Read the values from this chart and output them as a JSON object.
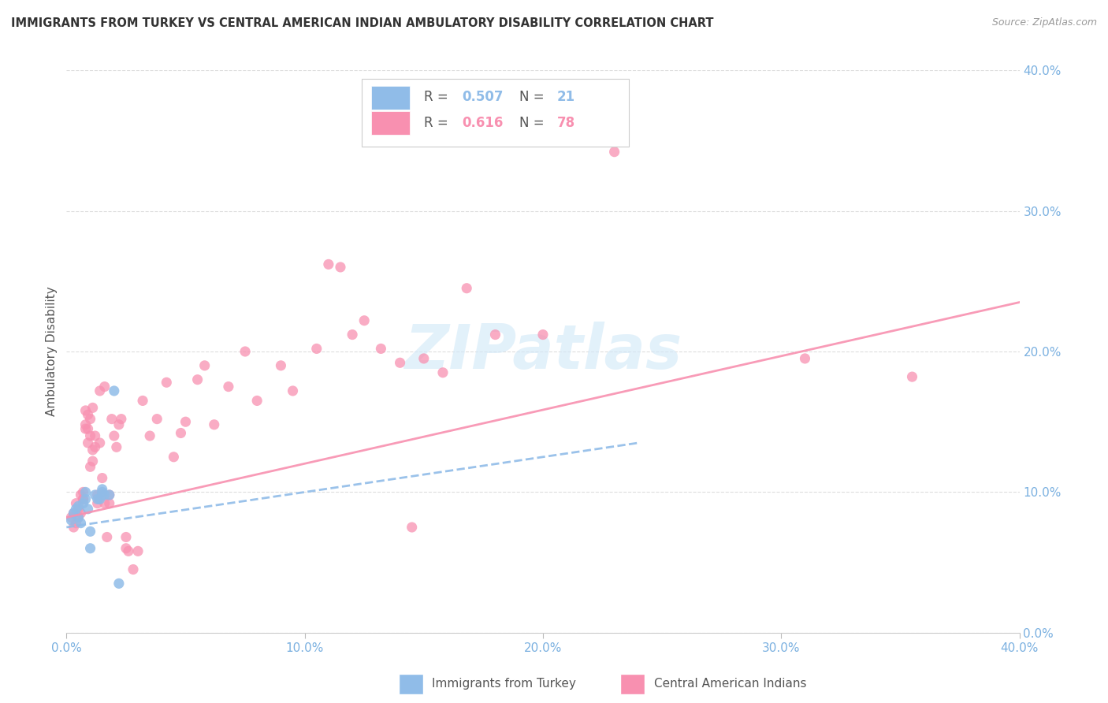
{
  "title": "IMMIGRANTS FROM TURKEY VS CENTRAL AMERICAN INDIAN AMBULATORY DISABILITY CORRELATION CHART",
  "source": "Source: ZipAtlas.com",
  "ylabel": "Ambulatory Disability",
  "xlim": [
    0.0,
    0.4
  ],
  "ylim": [
    0.0,
    0.4
  ],
  "xtick_vals": [
    0.0,
    0.1,
    0.2,
    0.3,
    0.4
  ],
  "xtick_labels": [
    "0.0%",
    "10.0%",
    "20.0%",
    "30.0%",
    "40.0%"
  ],
  "ytick_vals": [
    0.0,
    0.1,
    0.2,
    0.3,
    0.4
  ],
  "ytick_labels": [
    "0.0%",
    "10.0%",
    "20.0%",
    "30.0%",
    "40.0%"
  ],
  "legend_items": [
    {
      "label_r": "R = 0.507",
      "label_n": "N = 21",
      "color": "#90bce8"
    },
    {
      "label_r": "R = 0.616",
      "label_n": "N = 78",
      "color": "#f48fb1"
    }
  ],
  "legend_bottom": [
    "Immigrants from Turkey",
    "Central American Indians"
  ],
  "color_turkey": "#90bce8",
  "color_central": "#f890b0",
  "watermark": "ZIPatlas",
  "turkey_points": [
    [
      0.002,
      0.08
    ],
    [
      0.003,
      0.085
    ],
    [
      0.004,
      0.088
    ],
    [
      0.005,
      0.082
    ],
    [
      0.005,
      0.09
    ],
    [
      0.006,
      0.078
    ],
    [
      0.007,
      0.092
    ],
    [
      0.008,
      0.095
    ],
    [
      0.008,
      0.1
    ],
    [
      0.009,
      0.088
    ],
    [
      0.01,
      0.06
    ],
    [
      0.01,
      0.072
    ],
    [
      0.012,
      0.098
    ],
    [
      0.013,
      0.095
    ],
    [
      0.014,
      0.095
    ],
    [
      0.015,
      0.1
    ],
    [
      0.015,
      0.102
    ],
    [
      0.016,
      0.098
    ],
    [
      0.018,
      0.098
    ],
    [
      0.02,
      0.172
    ],
    [
      0.022,
      0.035
    ]
  ],
  "central_points": [
    [
      0.002,
      0.082
    ],
    [
      0.003,
      0.075
    ],
    [
      0.003,
      0.085
    ],
    [
      0.004,
      0.092
    ],
    [
      0.004,
      0.078
    ],
    [
      0.005,
      0.088
    ],
    [
      0.005,
      0.082
    ],
    [
      0.006,
      0.098
    ],
    [
      0.006,
      0.085
    ],
    [
      0.007,
      0.095
    ],
    [
      0.007,
      0.095
    ],
    [
      0.007,
      0.1
    ],
    [
      0.008,
      0.148
    ],
    [
      0.008,
      0.158
    ],
    [
      0.008,
      0.145
    ],
    [
      0.009,
      0.155
    ],
    [
      0.009,
      0.135
    ],
    [
      0.009,
      0.145
    ],
    [
      0.01,
      0.14
    ],
    [
      0.01,
      0.118
    ],
    [
      0.01,
      0.152
    ],
    [
      0.011,
      0.13
    ],
    [
      0.011,
      0.122
    ],
    [
      0.011,
      0.16
    ],
    [
      0.012,
      0.132
    ],
    [
      0.012,
      0.14
    ],
    [
      0.013,
      0.098
    ],
    [
      0.013,
      0.092
    ],
    [
      0.014,
      0.135
    ],
    [
      0.014,
      0.172
    ],
    [
      0.015,
      0.098
    ],
    [
      0.015,
      0.11
    ],
    [
      0.016,
      0.092
    ],
    [
      0.016,
      0.175
    ],
    [
      0.017,
      0.068
    ],
    [
      0.018,
      0.092
    ],
    [
      0.018,
      0.098
    ],
    [
      0.019,
      0.152
    ],
    [
      0.02,
      0.14
    ],
    [
      0.021,
      0.132
    ],
    [
      0.022,
      0.148
    ],
    [
      0.023,
      0.152
    ],
    [
      0.025,
      0.068
    ],
    [
      0.025,
      0.06
    ],
    [
      0.026,
      0.058
    ],
    [
      0.028,
      0.045
    ],
    [
      0.03,
      0.058
    ],
    [
      0.032,
      0.165
    ],
    [
      0.035,
      0.14
    ],
    [
      0.038,
      0.152
    ],
    [
      0.042,
      0.178
    ],
    [
      0.045,
      0.125
    ],
    [
      0.048,
      0.142
    ],
    [
      0.05,
      0.15
    ],
    [
      0.055,
      0.18
    ],
    [
      0.058,
      0.19
    ],
    [
      0.062,
      0.148
    ],
    [
      0.068,
      0.175
    ],
    [
      0.075,
      0.2
    ],
    [
      0.08,
      0.165
    ],
    [
      0.09,
      0.19
    ],
    [
      0.095,
      0.172
    ],
    [
      0.105,
      0.202
    ],
    [
      0.11,
      0.262
    ],
    [
      0.115,
      0.26
    ],
    [
      0.12,
      0.212
    ],
    [
      0.125,
      0.222
    ],
    [
      0.132,
      0.202
    ],
    [
      0.14,
      0.192
    ],
    [
      0.145,
      0.075
    ],
    [
      0.15,
      0.195
    ],
    [
      0.158,
      0.185
    ],
    [
      0.168,
      0.245
    ],
    [
      0.18,
      0.212
    ],
    [
      0.2,
      0.212
    ],
    [
      0.23,
      0.342
    ],
    [
      0.31,
      0.195
    ],
    [
      0.355,
      0.182
    ]
  ],
  "turkey_line_x": [
    0.0,
    0.24
  ],
  "turkey_line_y": [
    0.075,
    0.135
  ],
  "central_line_x": [
    0.0,
    0.4
  ],
  "central_line_y": [
    0.082,
    0.235
  ],
  "background_color": "#ffffff",
  "grid_color": "#dddddd",
  "tick_color_x": "#7ab0e0",
  "tick_color_y": "#7ab0e0"
}
